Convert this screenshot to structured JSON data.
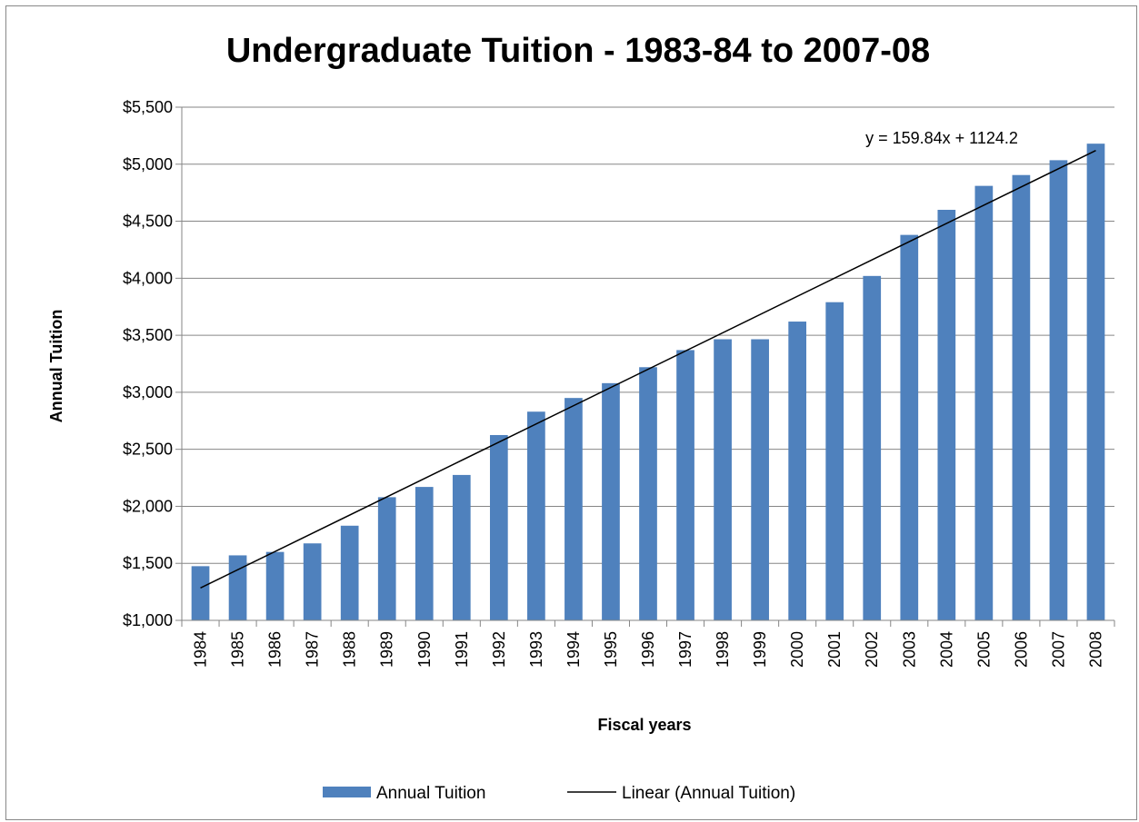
{
  "chart_data": {
    "type": "bar",
    "title": "Undergraduate Tuition - 1983-84 to 2007-08",
    "xlabel": "Fiscal years",
    "ylabel": "Annual Tuition",
    "categories": [
      "1984",
      "1985",
      "1986",
      "1987",
      "1988",
      "1989",
      "1990",
      "1991",
      "1992",
      "1993",
      "1994",
      "1995",
      "1996",
      "1997",
      "1998",
      "1999",
      "2000",
      "2001",
      "2002",
      "2003",
      "2004",
      "2005",
      "2006",
      "2007",
      "2008"
    ],
    "series": [
      {
        "name": "Annual Tuition",
        "values": [
          1475,
          1570,
          1600,
          1675,
          1830,
          2080,
          2170,
          2275,
          2625,
          2830,
          2950,
          3080,
          3220,
          3370,
          3465,
          3465,
          3620,
          3790,
          4020,
          4380,
          4600,
          4810,
          4905,
          5035,
          5180
        ],
        "color": "#4F81BD"
      }
    ],
    "trendline": {
      "name": "Linear (Annual Tuition)",
      "type": "linear",
      "slope": 159.84,
      "intercept": 1124.2,
      "equation": "y = 159.84x + 1124.2",
      "color": "#000000"
    },
    "ylim": [
      1000,
      5500
    ],
    "yticks": [
      1000,
      1500,
      2000,
      2500,
      3000,
      3500,
      4000,
      4500,
      5000,
      5500
    ],
    "ytick_labels": [
      "$1,000",
      "$1,500",
      "$2,000",
      "$2,500",
      "$3,000",
      "$3,500",
      "$4,000",
      "$4,500",
      "$5,000",
      "$5,500"
    ],
    "grid": true,
    "legend_position": "bottom"
  }
}
